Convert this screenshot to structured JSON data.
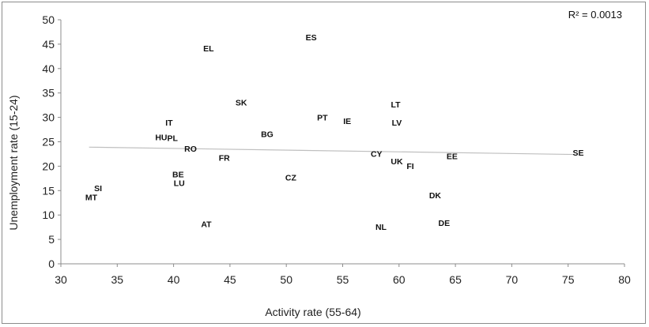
{
  "chart_data": {
    "type": "scatter",
    "xlabel": "Activity rate (55-64)",
    "ylabel": "Unemployment rate (15-24)",
    "xlim": [
      30,
      80
    ],
    "ylim": [
      0,
      50
    ],
    "xticks": [
      30,
      35,
      40,
      45,
      50,
      55,
      60,
      65,
      70,
      75,
      80
    ],
    "yticks": [
      0,
      5,
      10,
      15,
      20,
      25,
      30,
      35,
      40,
      45,
      50
    ],
    "grid": false,
    "annotation": "R² = 0.0013",
    "trendline": {
      "type": "linear",
      "x": [
        32.5,
        75.5
      ],
      "y": [
        23.9,
        22.4
      ],
      "color": "#bfbfbf"
    },
    "points": [
      {
        "label": "ES",
        "x": 52.2,
        "y": 46.4
      },
      {
        "label": "EL",
        "x": 43.1,
        "y": 44.2
      },
      {
        "label": "SK",
        "x": 46.0,
        "y": 33.1
      },
      {
        "label": "LT",
        "x": 59.7,
        "y": 32.7
      },
      {
        "label": "PT",
        "x": 53.2,
        "y": 30.0
      },
      {
        "label": "IE",
        "x": 55.4,
        "y": 29.3
      },
      {
        "label": "LV",
        "x": 59.8,
        "y": 29.0
      },
      {
        "label": "IT",
        "x": 39.6,
        "y": 29.0
      },
      {
        "label": "BG",
        "x": 48.3,
        "y": 26.6
      },
      {
        "label": "HU",
        "x": 38.9,
        "y": 26.0
      },
      {
        "label": "PL",
        "x": 39.9,
        "y": 25.8
      },
      {
        "label": "RO",
        "x": 41.5,
        "y": 23.6
      },
      {
        "label": "CY",
        "x": 58.0,
        "y": 22.6
      },
      {
        "label": "SE",
        "x": 75.9,
        "y": 22.8
      },
      {
        "label": "EE",
        "x": 64.7,
        "y": 22.1
      },
      {
        "label": "FR",
        "x": 44.5,
        "y": 21.8
      },
      {
        "label": "UK",
        "x": 59.8,
        "y": 21.0
      },
      {
        "label": "FI",
        "x": 61.0,
        "y": 20.1
      },
      {
        "label": "BE",
        "x": 40.4,
        "y": 18.4
      },
      {
        "label": "CZ",
        "x": 50.4,
        "y": 17.7
      },
      {
        "label": "LU",
        "x": 40.5,
        "y": 16.6
      },
      {
        "label": "SI",
        "x": 33.3,
        "y": 15.5
      },
      {
        "label": "DK",
        "x": 63.2,
        "y": 14.1
      },
      {
        "label": "MT",
        "x": 32.7,
        "y": 13.7
      },
      {
        "label": "DE",
        "x": 64.0,
        "y": 8.4
      },
      {
        "label": "AT",
        "x": 42.9,
        "y": 8.2
      },
      {
        "label": "NL",
        "x": 58.4,
        "y": 7.6
      }
    ]
  }
}
